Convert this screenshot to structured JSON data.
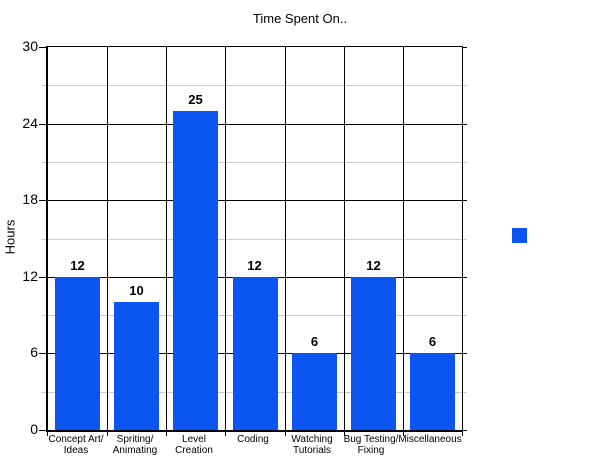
{
  "chart_data": {
    "type": "bar",
    "title": "Time Spent On..",
    "xlabel": "",
    "ylabel": "Hours",
    "categories": [
      "Concept Art/\nIdeas",
      "Spriting/\nAnimating",
      "Level\nCreation",
      "Coding",
      "Watching\nTutorials",
      "Bug Testing/\nFixing",
      "Miscellaneous"
    ],
    "values": [
      12,
      10,
      25,
      12,
      6,
      12,
      6
    ],
    "bar_labels": [
      "12",
      "10",
      "25",
      "12",
      "6",
      "12",
      "6"
    ],
    "ylim": [
      0,
      30
    ],
    "y_major_ticks": [
      0,
      6,
      12,
      18,
      24,
      30
    ],
    "y_minor_ticks": [
      3,
      9,
      15,
      21,
      27
    ],
    "grid": "major lines black, minor lines gray, vertical category separators",
    "legend": {
      "position": "right",
      "label": ""
    },
    "colors": {
      "bar": "#0d55f0",
      "major_grid": "#000000",
      "minor_grid": "#cccccc",
      "text": "#000000",
      "background": "#ffffff"
    }
  }
}
